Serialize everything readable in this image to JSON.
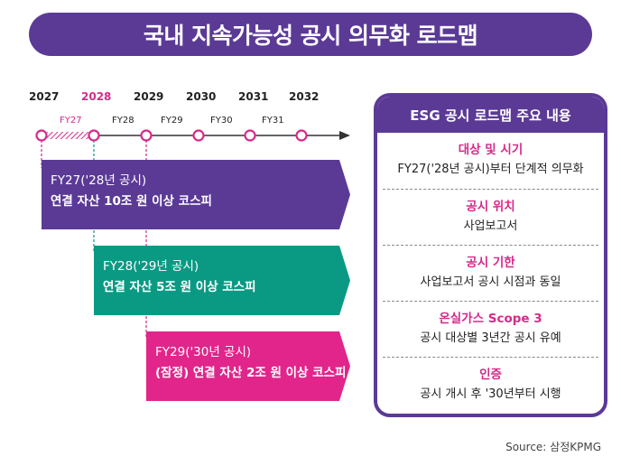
{
  "title": "국내 지속가능성 공시 의무화 로드맵",
  "timeline": {
    "years": [
      "2027",
      "2028",
      "2029",
      "2030",
      "2031",
      "2032"
    ],
    "fiscal_years": [
      "FY27",
      "FY28",
      "FY29",
      "FY30",
      "FY31"
    ],
    "highlight_color": "#d62a8a"
  },
  "phases": [
    {
      "line1": "FY27('28년 공시)",
      "line2": "연결 자산 10조 원 이상 코스피",
      "color": "#5b3a96"
    },
    {
      "line1": "FY28('29년 공시)",
      "line2": "연결 자산 5조 원 이상 코스피",
      "color": "#0a9a84"
    },
    {
      "line1": "FY29('30년 공시)",
      "line2": "(잠정) 연결 자산 2조 원 이상 코스피",
      "color": "#e1258b"
    }
  ],
  "panel": {
    "heading": "ESG 공시 로드맵 주요 내용",
    "items": [
      {
        "title": "대상 및 시기",
        "desc": "FY27('28년 공시)부터 단계적 의무화"
      },
      {
        "title": "공시 위치",
        "desc": "사업보고서"
      },
      {
        "title": "공시 기한",
        "desc": "사업보고서 공시 시점과 동일"
      },
      {
        "title": "온실가스 Scope 3",
        "desc": "공시 대상별 3년간 공시 유예"
      },
      {
        "title": "인증",
        "desc": "공시 개시 후 '30년부터 시행"
      }
    ]
  },
  "source": "Source: 삼정KPMG",
  "colors": {
    "purple": "#5b3a96",
    "teal": "#0a9a84",
    "magenta": "#e1258b"
  }
}
